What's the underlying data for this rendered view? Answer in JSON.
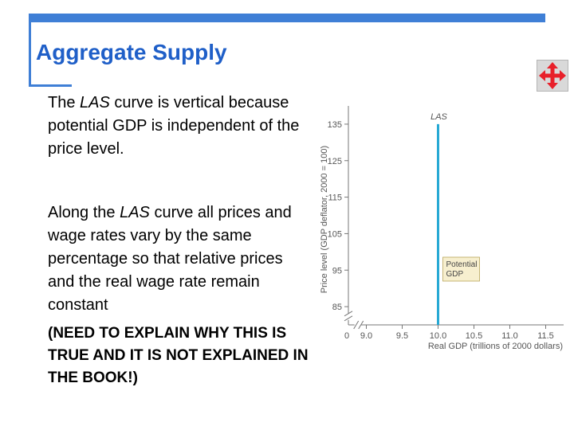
{
  "slide": {
    "title": "Aggregate Supply",
    "para1": {
      "t1": "The ",
      "t2": "LAS",
      "t3": " curve is vertical because potential GDP is independent of the price level."
    },
    "para2": {
      "t1": "Along the ",
      "t2": "LAS",
      "t3": " curve all prices and wage rates vary by the same percentage so that relative prices and the real wage rate remain constant"
    },
    "para3": "(NEED TO EXPLAIN WHY THIS IS TRUE AND IT IS NOT EXPLAINED IN THE BOOK!)",
    "nav_icon": "move-arrows-icon",
    "colors": {
      "accent": "#3f7fd6",
      "title": "#1f5fc8",
      "nav_arrows": "#e8202a"
    }
  },
  "chart_data": {
    "type": "line",
    "xlabel": "Real GDP (trillions of 2000 dollars)",
    "ylabel": "Price level (GDP deflator, 2000 = 100)",
    "x_ticks": [
      "0",
      "9.0",
      "9.5",
      "10.0",
      "10.5",
      "11.0",
      "11.5"
    ],
    "y_ticks": [
      "85",
      "95",
      "105",
      "115",
      "125",
      "135"
    ],
    "xlim": [
      8.75,
      11.75
    ],
    "ylim": [
      80,
      140
    ],
    "series": [
      {
        "name": "LAS",
        "x": [
          10.0,
          10.0
        ],
        "y": [
          80,
          135
        ],
        "color": "#27a9d4"
      }
    ],
    "annotation": {
      "text": [
        "Potential",
        "GDP"
      ],
      "x": 10.0,
      "y": 92
    },
    "axis_break": true
  }
}
